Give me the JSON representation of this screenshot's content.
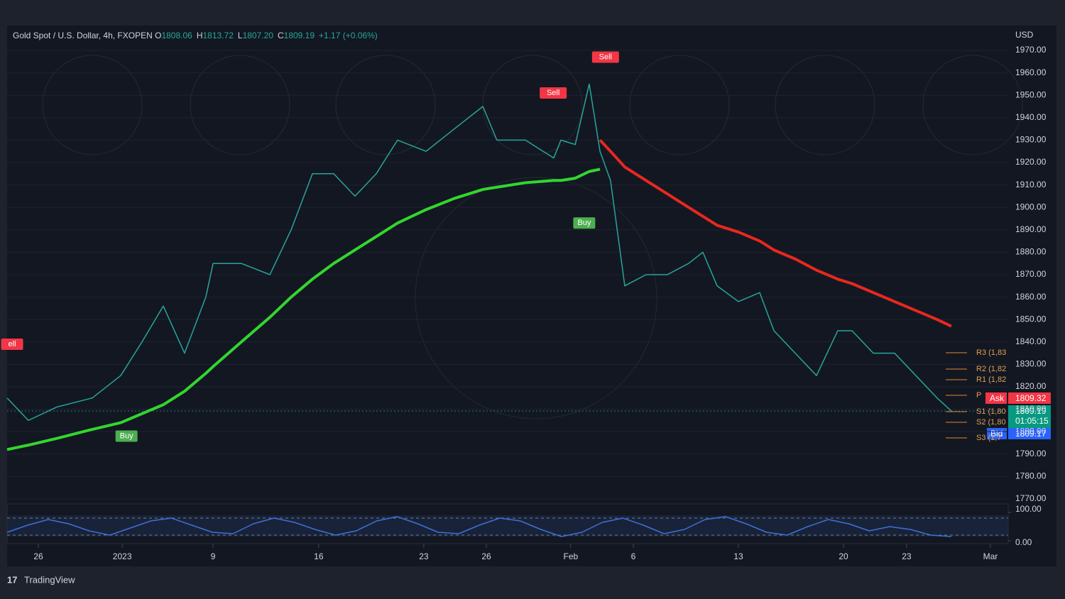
{
  "header": {
    "symbol": "Gold Spot / U.S. Dollar, 4h, FXOPEN",
    "ohlc": [
      {
        "label": "O",
        "value": "1808.06"
      },
      {
        "label": "H",
        "value": "1813.72"
      },
      {
        "label": "L",
        "value": "1807.20"
      },
      {
        "label": "C",
        "value": "1809.19"
      }
    ],
    "change": "+1.17 (+0.06%)"
  },
  "currency": "USD",
  "price_tags": {
    "ask_label": "Ask",
    "ask": "1809.32",
    "last": "1809.19",
    "countdown": "01:05:15",
    "bid_label": "Bid",
    "bid": "1809.17"
  },
  "pivots": [
    "R3 (1,83",
    "R2 (1,82",
    "R1 (1,82",
    "P",
    "S1 (1,80",
    "S2 (1,80",
    "S3 (1,7"
  ],
  "brand": "TradingView",
  "chart_data": [
    {
      "type": "line",
      "xlim": [
        0,
        400
      ],
      "ylim": [
        1768,
        1980
      ],
      "xticks": [
        {
          "value": 12.5,
          "label": "26"
        },
        {
          "value": 46,
          "label": "2023"
        },
        {
          "value": 82.3,
          "label": "9"
        },
        {
          "value": 124.5,
          "label": "16"
        },
        {
          "value": 166.5,
          "label": "23"
        },
        {
          "value": 191.5,
          "label": "26"
        },
        {
          "value": 225.2,
          "label": "Feb"
        },
        {
          "value": 250.2,
          "label": "6"
        },
        {
          "value": 292.2,
          "label": "13"
        },
        {
          "value": 334.2,
          "label": "20"
        },
        {
          "value": 359.4,
          "label": "23"
        },
        {
          "value": 392.9,
          "label": "Mar"
        }
      ],
      "yticks": [
        {
          "value": 1770,
          "label": "1770.00"
        },
        {
          "value": 1780,
          "label": "1780.00"
        },
        {
          "value": 1790,
          "label": "1790.00"
        },
        {
          "value": 1800,
          "label": "1800.00"
        },
        {
          "value": 1810,
          "label": "1810.00"
        },
        {
          "value": 1820,
          "label": "1820.00"
        },
        {
          "value": 1830,
          "label": "1830.00"
        },
        {
          "value": 1840,
          "label": "1840.00"
        },
        {
          "value": 1850,
          "label": "1850.00"
        },
        {
          "value": 1860,
          "label": "1860.00"
        },
        {
          "value": 1870,
          "label": "1870.00"
        },
        {
          "value": 1880,
          "label": "1880.00"
        },
        {
          "value": 1890,
          "label": "1890.00"
        },
        {
          "value": 1900,
          "label": "1900.00"
        },
        {
          "value": 1910,
          "label": "1910.00"
        },
        {
          "value": 1920,
          "label": "1920.00"
        },
        {
          "value": 1930,
          "label": "1930.00"
        },
        {
          "value": 1940,
          "label": "1940.00"
        },
        {
          "value": 1950,
          "label": "1950.00"
        },
        {
          "value": 1960,
          "label": "1960.00"
        },
        {
          "value": 1970,
          "label": "1970.00"
        }
      ],
      "x": [
        0,
        8.5,
        19.9,
        34,
        45.4,
        53.9,
        62.4,
        70.9,
        79.4,
        82.3,
        93.6,
        105,
        113.5,
        122,
        130.5,
        139,
        147.5,
        156,
        167.4,
        178.7,
        190.1,
        195.7,
        207.1,
        218.4,
        221.3,
        227,
        232.6,
        236.9,
        241.1,
        246.8,
        255.3,
        263.8,
        272.3,
        278,
        283.7,
        292.2,
        300.7,
        306.4,
        314.9,
        323.4,
        331.9,
        337.6,
        346.1,
        354.6,
        363.1,
        371.6,
        377.3
      ],
      "series": [
        {
          "color": "#26a69a",
          "width": 1.5,
          "values": [
            1815,
            1805,
            1811,
            1815,
            1825,
            1840,
            1856,
            1835,
            1860,
            1875,
            1875,
            1870,
            1890,
            1915,
            1915,
            1905,
            1915,
            1930,
            1925,
            1935,
            1945,
            1930,
            1930,
            1922,
            1930,
            1928,
            1955,
            1925,
            1912,
            1865,
            1870,
            1870,
            1875,
            1880,
            1865,
            1858,
            1862,
            1845,
            1835,
            1825,
            1845,
            1845,
            1835,
            1835,
            1825,
            1815,
            1809.19
          ]
        },
        {
          "color": "#32d62e",
          "width": 4,
          "values": [
            1792,
            1794,
            1797,
            1801,
            1804,
            1808,
            1812,
            1818,
            1826,
            1829,
            1840,
            1851,
            1860,
            1868,
            1875,
            1881,
            1887,
            1893,
            1899,
            1904,
            1908,
            1909,
            1911,
            1912,
            1912,
            1913,
            1916,
            1917,
            null,
            null,
            null,
            null,
            null,
            null,
            null,
            null,
            null,
            null,
            null,
            null,
            null,
            null,
            null,
            null,
            null,
            null,
            null
          ]
        },
        {
          "color": "#e8281e",
          "width": 4,
          "values": [
            null,
            null,
            null,
            null,
            null,
            null,
            null,
            null,
            null,
            null,
            null,
            null,
            null,
            null,
            null,
            null,
            null,
            null,
            null,
            null,
            null,
            null,
            null,
            null,
            null,
            null,
            null,
            1930,
            1925,
            1918,
            1912,
            1906,
            1900,
            1896,
            1892,
            1889,
            1885,
            1881,
            1877,
            1872,
            1868,
            1866,
            1862,
            1858,
            1854,
            1850,
            1847
          ]
        }
      ],
      "annotations": [
        {
          "text": "ell",
          "x": 2,
          "y": 1839,
          "color": "#f23645"
        },
        {
          "text": "Buy",
          "x": 47.7,
          "y": 1798,
          "color": "#4caf50"
        },
        {
          "text": "Sell",
          "x": 218.2,
          "y": 1951,
          "color": "#f23645"
        },
        {
          "text": "Buy",
          "x": 230.6,
          "y": 1893,
          "color": "#4caf50"
        },
        {
          "text": "Sell",
          "x": 239.1,
          "y": 1967,
          "color": "#f23645"
        }
      ]
    },
    {
      "type": "line",
      "ylim": [
        0,
        100
      ],
      "yticks": [
        {
          "value": 0,
          "label": "0.00"
        },
        {
          "value": 100,
          "label": "100.00"
        }
      ],
      "levels": [
        20,
        80
      ],
      "series": [
        {
          "color": "#3f6fd8",
          "values": [
            30,
            55,
            75,
            60,
            35,
            20,
            45,
            70,
            80,
            55,
            30,
            25,
            60,
            80,
            65,
            40,
            20,
            35,
            70,
            85,
            60,
            30,
            25,
            55,
            80,
            70,
            40,
            15,
            30,
            65,
            80,
            55,
            25,
            40,
            75,
            85,
            60,
            30,
            20,
            50,
            75,
            60,
            35,
            50,
            40,
            20,
            15
          ]
        }
      ]
    }
  ]
}
